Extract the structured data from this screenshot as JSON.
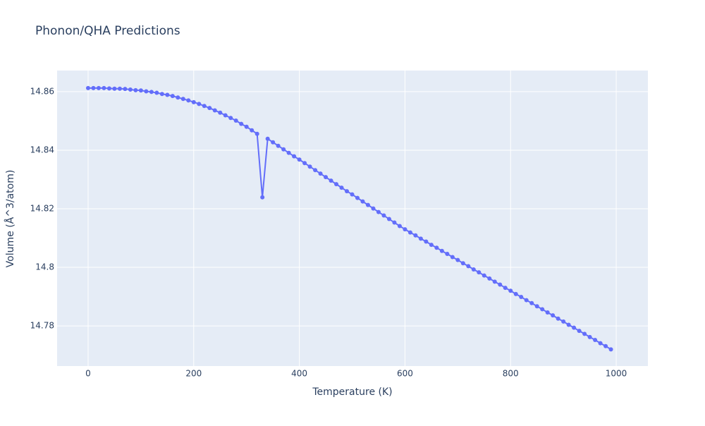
{
  "chart_data": {
    "type": "line",
    "title": "Phonon/QHA Predictions",
    "x_label": "Temperature (K)",
    "y_label": "Volume (Å^3/atom)",
    "x": [
      0,
      10,
      20,
      30,
      40,
      50,
      60,
      70,
      80,
      90,
      100,
      110,
      120,
      130,
      140,
      150,
      160,
      170,
      180,
      190,
      200,
      210,
      220,
      230,
      240,
      250,
      260,
      270,
      280,
      290,
      300,
      310,
      320,
      330,
      340,
      350,
      360,
      370,
      380,
      390,
      400,
      410,
      420,
      430,
      440,
      450,
      460,
      470,
      480,
      490,
      500,
      510,
      520,
      530,
      540,
      550,
      560,
      570,
      580,
      590,
      600,
      610,
      620,
      630,
      640,
      650,
      660,
      670,
      680,
      690,
      700,
      710,
      720,
      730,
      740,
      750,
      760,
      770,
      780,
      790,
      800,
      810,
      820,
      830,
      840,
      850,
      860,
      870,
      880,
      890,
      900,
      910,
      920,
      930,
      940,
      950,
      960,
      970,
      980,
      990
    ],
    "series": [
      {
        "color": "#636efa",
        "values": [
          14.8612,
          14.8612,
          14.8612,
          14.8612,
          14.8611,
          14.861,
          14.861,
          14.8609,
          14.8607,
          14.8605,
          14.8604,
          14.8601,
          14.8599,
          14.8596,
          14.8592,
          14.8589,
          14.8585,
          14.858,
          14.8575,
          14.857,
          14.8564,
          14.8558,
          14.8551,
          14.8544,
          14.8536,
          14.8528,
          14.8519,
          14.851,
          14.8501,
          14.849,
          14.848,
          14.8468,
          14.8456,
          14.8239,
          14.8439,
          14.8427,
          14.8415,
          14.8403,
          14.8391,
          14.8379,
          14.8368,
          14.8356,
          14.8344,
          14.8332,
          14.832,
          14.8308,
          14.8296,
          14.8284,
          14.8272,
          14.826,
          14.8249,
          14.8237,
          14.8225,
          14.8213,
          14.8201,
          14.8189,
          14.8177,
          14.8165,
          14.8153,
          14.8141,
          14.813,
          14.8119,
          14.8109,
          14.8098,
          14.8088,
          14.8077,
          14.8067,
          14.8056,
          14.8046,
          14.8035,
          14.8025,
          14.8014,
          14.8004,
          14.7993,
          14.7983,
          14.7972,
          14.7962,
          14.7951,
          14.7941,
          14.793,
          14.792,
          14.7909,
          14.7899,
          14.7888,
          14.7878,
          14.7867,
          14.7857,
          14.7846,
          14.7836,
          14.7825,
          14.7815,
          14.7804,
          14.7794,
          14.7783,
          14.7773,
          14.7762,
          14.7752,
          14.7741,
          14.7731,
          14.772
        ]
      }
    ],
    "xlim": [
      -58.7,
      1060
    ],
    "ylim": [
      14.7663,
      14.8672
    ],
    "xticks": [
      0,
      200,
      400,
      600,
      800,
      1000
    ],
    "yticks": [
      14.78,
      14.8,
      14.82,
      14.84,
      14.86
    ],
    "grid": true
  }
}
